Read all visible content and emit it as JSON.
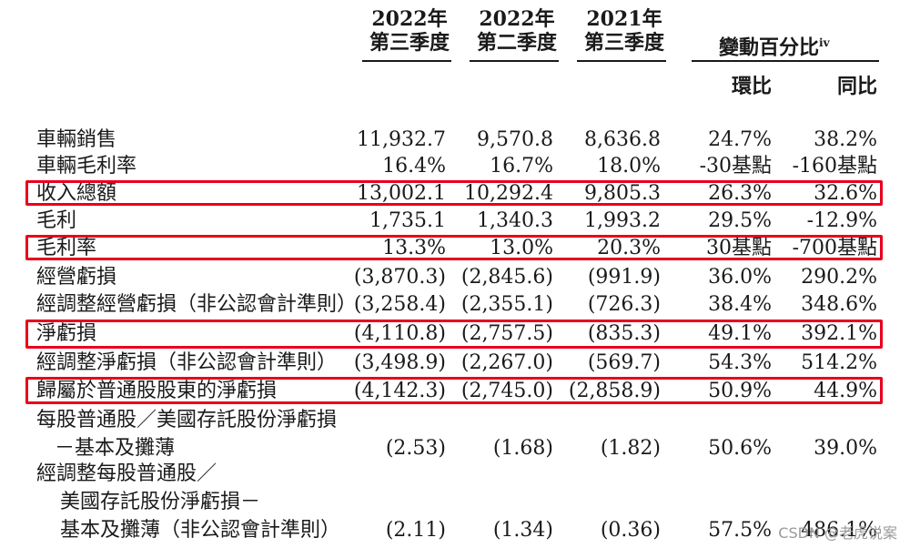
{
  "header": {
    "col1": {
      "line1": "2022年",
      "line2": "第三季度"
    },
    "col2": {
      "line1": "2022年",
      "line2": "第二季度"
    },
    "col3": {
      "line1": "2021年",
      "line2": "第三季度"
    },
    "change": {
      "label": "變動百分比",
      "sup": "iv",
      "qoq": "環比",
      "yoy": "同比"
    }
  },
  "rows": [
    {
      "label": "車輛銷售",
      "q3_2022": "11,932.7",
      "q2_2022": "9,570.8",
      "q3_2021": "8,636.8",
      "qoq": "24.7%",
      "yoy": "38.2%"
    },
    {
      "label": "車輛毛利率",
      "q3_2022": "16.4%",
      "q2_2022": "16.7%",
      "q3_2021": "18.0%",
      "qoq": "-30基點",
      "yoy": "-160基點"
    },
    {
      "label": "收入總額",
      "q3_2022": "13,002.1",
      "q2_2022": "10,292.4",
      "q3_2021": "9,805.3",
      "qoq": "26.3%",
      "yoy": "32.6%",
      "highlight": true
    },
    {
      "label": "毛利",
      "q3_2022": "1,735.1",
      "q2_2022": "1,340.3",
      "q3_2021": "1,993.2",
      "qoq": "29.5%",
      "yoy": "-12.9%"
    },
    {
      "label": "毛利率",
      "q3_2022": "13.3%",
      "q2_2022": "13.0%",
      "q3_2021": "20.3%",
      "qoq": "30基點",
      "yoy": "-700基點",
      "highlight": true
    },
    {
      "label": "經營虧損",
      "q3_2022": "(3,870.3)",
      "q2_2022": "(2,845.6)",
      "q3_2021": "(991.9)",
      "qoq": "36.0%",
      "yoy": "290.2%"
    },
    {
      "label": "經調整經營虧損（非公認會計準則）",
      "q3_2022": "(3,258.4)",
      "q2_2022": "(2,355.1)",
      "q3_2021": "(726.3)",
      "qoq": "38.4%",
      "yoy": "348.6%"
    },
    {
      "label": "淨虧損",
      "q3_2022": "(4,110.8)",
      "q2_2022": "(2,757.5)",
      "q3_2021": "(835.3)",
      "qoq": "49.1%",
      "yoy": "392.1%",
      "highlight": true
    },
    {
      "label": "經調整淨虧損（非公認會計準則）",
      "q3_2022": "(3,498.9)",
      "q2_2022": "(2,267.0)",
      "q3_2021": "(569.7)",
      "qoq": "54.3%",
      "yoy": "514.2%"
    },
    {
      "label": "歸屬於普通股股東的淨虧損",
      "q3_2022": "(4,142.3)",
      "q2_2022": "(2,745.0)",
      "q3_2021": "(2,858.9)",
      "qoq": "50.9%",
      "yoy": "44.9%",
      "highlight": true
    }
  ],
  "eps_basic": {
    "label_line1": "每股普通股／美國存託股份淨虧損",
    "label_line2": "－基本及攤薄",
    "q3_2022": "(2.53)",
    "q2_2022": "(1.68)",
    "q3_2021": "(1.82)",
    "qoq": "50.6%",
    "yoy": "39.0%"
  },
  "eps_adjusted": {
    "label_line1": "經調整每股普通股／",
    "label_line2": "美國存託股份淨虧損－",
    "label_line3": "基本及攤薄（非公認會計準則）",
    "q3_2022": "(2.11)",
    "q2_2022": "(1.34)",
    "q3_2021": "(0.36)",
    "qoq": "57.5%",
    "yoy": "486.1%"
  },
  "watermark": "CSDN @老虎说案",
  "highlight_color": "#e8001c"
}
